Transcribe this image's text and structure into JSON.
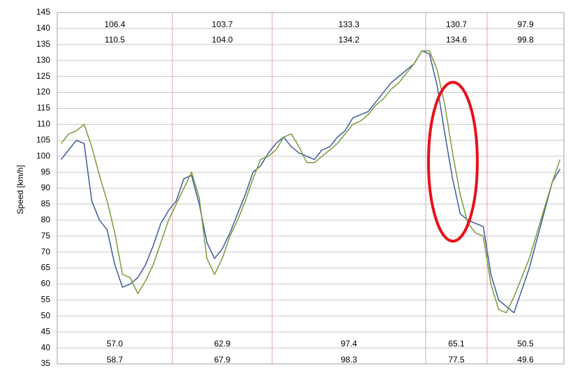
{
  "chart_data": {
    "type": "line",
    "y_label": "Speed [km/h]",
    "ylim": [
      35,
      145
    ],
    "yticks": [
      35,
      40,
      45,
      50,
      55,
      60,
      65,
      70,
      75,
      80,
      85,
      90,
      95,
      100,
      105,
      110,
      115,
      120,
      125,
      130,
      135,
      140,
      145
    ],
    "grid": true,
    "series": [
      {
        "color": "#3d5c9a",
        "sectors": [
          [
            99,
            102,
            105,
            104,
            86,
            80,
            77,
            66,
            59,
            60,
            62,
            66,
            72,
            79,
            83
          ],
          [
            86,
            93,
            94,
            85,
            73,
            68,
            71,
            76,
            82,
            88,
            95,
            97,
            101
          ],
          [
            104,
            106,
            103,
            101,
            100,
            99,
            102,
            103,
            106,
            108,
            112,
            113,
            114,
            117,
            120,
            123,
            125,
            127,
            129,
            133
          ],
          [
            132,
            122,
            107,
            93,
            82,
            80,
            79,
            78
          ],
          [
            63,
            55,
            53,
            51,
            58,
            65,
            74,
            83,
            92,
            96
          ]
        ],
        "max": [
          106.4,
          103.7,
          133.3,
          130.7,
          97.9
        ],
        "max_labels": [
          "106.4",
          "103.7",
          "133.3",
          "130.7",
          "97.9"
        ],
        "min": [
          58.7,
          67.9,
          98.3,
          77.5,
          49.6
        ],
        "min_labels": [
          "58.7",
          "67.9",
          "98.3",
          "77.5",
          "49.6"
        ]
      },
      {
        "color": "#7a9a3a",
        "sectors": [
          [
            104,
            107,
            108,
            110,
            103,
            94,
            86,
            76,
            63,
            62,
            57,
            61,
            66,
            73,
            80
          ],
          [
            85,
            90,
            95,
            87,
            68,
            63,
            68,
            75,
            80,
            86,
            93,
            99,
            100
          ],
          [
            102,
            106,
            107,
            103,
            98,
            98,
            100,
            102,
            104,
            107,
            110,
            111,
            113,
            116,
            118,
            121,
            123,
            126,
            129,
            133
          ],
          [
            133,
            127,
            116,
            101,
            88,
            79,
            76,
            75
          ],
          [
            60,
            52,
            51,
            56,
            62,
            68,
            76,
            84,
            92,
            99
          ]
        ],
        "max": [
          110.5,
          104.0,
          134.2,
          134.6,
          99.8
        ],
        "max_labels": [
          "110.5",
          "104.0",
          "134.2",
          "134.6",
          "99.8"
        ],
        "min": [
          57.0,
          62.9,
          97.4,
          65.1,
          50.5
        ],
        "min_labels": [
          "57.0",
          "62.9",
          "97.4",
          "65.1",
          "50.5"
        ]
      }
    ]
  }
}
